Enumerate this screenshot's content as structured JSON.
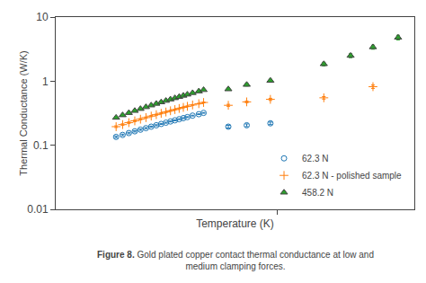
{
  "chart_data": {
    "type": "scatter",
    "xlabel": "Temperature (K)",
    "ylabel": "Thermal Conductance (W/K)",
    "log": true,
    "xlim": [
      2.0,
      27.0
    ],
    "ylim": [
      0.01,
      10.0
    ],
    "xticks": [
      10
    ],
    "yticks": [
      0.01,
      0.1,
      1,
      10
    ],
    "tick_labels": "y",
    "grid": false,
    "legend": "lower right",
    "annotations": [
      "Figure 8.",
      "Gold plated copper contact thermal conductance at low and\nmedium clamping forces."
    ],
    "series": [
      {
        "name": "62.3 N",
        "marker": "circle-open",
        "x": [
          3.1,
          3.25,
          3.4,
          3.55,
          3.7,
          3.85,
          4.0,
          4.15,
          4.3,
          4.45,
          4.6,
          4.75,
          4.9,
          5.05,
          5.2,
          5.4,
          5.65,
          5.85,
          7.0,
          8.0,
          9.5
        ],
        "values": [
          0.135,
          0.145,
          0.155,
          0.165,
          0.175,
          0.185,
          0.195,
          0.205,
          0.215,
          0.225,
          0.235,
          0.245,
          0.255,
          0.265,
          0.275,
          0.29,
          0.305,
          0.32,
          0.195,
          0.205,
          0.22
        ],
        "yerr": [
          0.004,
          0.004,
          0.004,
          0.004,
          0.004,
          0.004,
          0.004,
          0.004,
          0.004,
          0.004,
          0.004,
          0.004,
          0.004,
          0.004,
          0.004,
          0.004,
          0.004,
          0.004,
          0.01,
          0.01,
          0.01
        ]
      },
      {
        "name": "62.3 N - polished sample",
        "marker": "cross-thin-open",
        "x": [
          3.1,
          3.25,
          3.4,
          3.55,
          3.7,
          3.85,
          4.0,
          4.15,
          4.3,
          4.45,
          4.6,
          4.75,
          4.9,
          5.05,
          5.2,
          5.4,
          5.65,
          5.85,
          7.0,
          8.0,
          9.5,
          14.0,
          20.0
        ],
        "values": [
          0.195,
          0.21,
          0.225,
          0.24,
          0.255,
          0.27,
          0.285,
          0.3,
          0.315,
          0.33,
          0.345,
          0.36,
          0.375,
          0.39,
          0.405,
          0.425,
          0.445,
          0.465,
          0.42,
          0.475,
          0.52,
          0.55,
          0.82
        ],
        "yerr": [
          0.006,
          0.006,
          0.006,
          0.006,
          0.006,
          0.006,
          0.006,
          0.006,
          0.006,
          0.006,
          0.006,
          0.006,
          0.006,
          0.006,
          0.006,
          0.006,
          0.006,
          0.006,
          0.015,
          0.015,
          0.02,
          0.025,
          0.05
        ]
      },
      {
        "name": "458.2 N",
        "marker": "triangle-up",
        "x": [
          3.1,
          3.25,
          3.4,
          3.55,
          3.7,
          3.85,
          4.0,
          4.15,
          4.3,
          4.45,
          4.6,
          4.75,
          4.9,
          5.05,
          5.2,
          5.4,
          5.65,
          5.85,
          7.0,
          8.0,
          9.5,
          14.0,
          17.0,
          20.0,
          24.0
        ],
        "values": [
          0.27,
          0.295,
          0.32,
          0.345,
          0.37,
          0.395,
          0.42,
          0.445,
          0.47,
          0.495,
          0.52,
          0.545,
          0.57,
          0.595,
          0.62,
          0.655,
          0.695,
          0.73,
          0.75,
          0.88,
          1.02,
          1.85,
          2.5,
          3.4,
          4.8
        ],
        "yerr": [
          0.008,
          0.008,
          0.008,
          0.008,
          0.008,
          0.008,
          0.008,
          0.008,
          0.008,
          0.008,
          0.008,
          0.008,
          0.008,
          0.008,
          0.008,
          0.008,
          0.008,
          0.008,
          0.03,
          0.04,
          0.05,
          0.12,
          0.18,
          0.25,
          0.4
        ]
      }
    ]
  }
}
